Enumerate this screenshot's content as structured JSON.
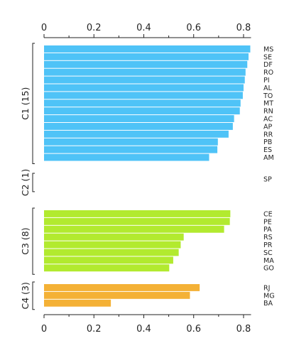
{
  "chart_data": {
    "type": "bar",
    "orientation": "horizontal",
    "xlim": [
      0,
      0.83
    ],
    "ticks": [
      0,
      0.2,
      0.4,
      0.6,
      0.8
    ],
    "tick_labels": [
      "0",
      "0.2",
      "0.4",
      "0.6",
      "0.8"
    ],
    "minor_ticks": [
      0.1,
      0.3,
      0.5,
      0.7
    ],
    "axis_position": "top and bottom",
    "grid": false,
    "groups": [
      {
        "label": "C1 (15)",
        "color": "#4fc3f7",
        "bars": [
          {
            "category": "MS",
            "value": 0.827
          },
          {
            "category": "SE",
            "value": 0.82
          },
          {
            "category": "DF",
            "value": 0.815
          },
          {
            "category": "RO",
            "value": 0.808
          },
          {
            "category": "PI",
            "value": 0.805
          },
          {
            "category": "AL",
            "value": 0.8
          },
          {
            "category": "TO",
            "value": 0.797
          },
          {
            "category": "MT",
            "value": 0.788
          },
          {
            "category": "RN",
            "value": 0.785
          },
          {
            "category": "AC",
            "value": 0.762
          },
          {
            "category": "AP",
            "value": 0.757
          },
          {
            "category": "RR",
            "value": 0.74
          },
          {
            "category": "PB",
            "value": 0.697
          },
          {
            "category": "ES",
            "value": 0.695
          },
          {
            "category": "AM",
            "value": 0.662
          }
        ]
      },
      {
        "label": "C2 (1)",
        "color": "#4fc3f7",
        "bars": [
          {
            "category": "SP",
            "value": 0
          }
        ]
      },
      {
        "label": "C3 (8)",
        "color": "#b2ea2f",
        "bars": [
          {
            "category": "CE",
            "value": 0.747
          },
          {
            "category": "PE",
            "value": 0.745
          },
          {
            "category": "PA",
            "value": 0.722
          },
          {
            "category": "RS",
            "value": 0.56
          },
          {
            "category": "PR",
            "value": 0.548
          },
          {
            "category": "SC",
            "value": 0.54
          },
          {
            "category": "MA",
            "value": 0.518
          },
          {
            "category": "GO",
            "value": 0.502
          }
        ]
      },
      {
        "label": "C4 (3)",
        "color": "#f4b136",
        "bars": [
          {
            "category": "RJ",
            "value": 0.624
          },
          {
            "category": "MG",
            "value": 0.585
          },
          {
            "category": "BA",
            "value": 0.268
          }
        ]
      }
    ]
  }
}
